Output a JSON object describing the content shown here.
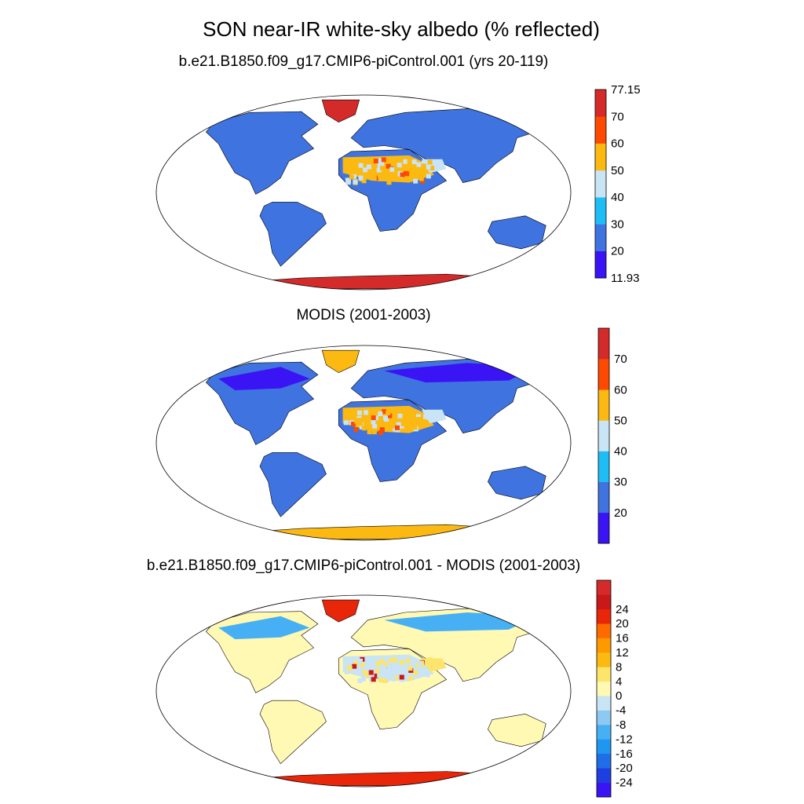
{
  "title": "SON near-IR white-sky albedo (% reflected)",
  "panels": [
    {
      "title": "b.e21.B1850.f09_g17.CMIP6-piControl.001 (yrs 20-119)",
      "colorbar": {
        "colors": [
          "#3a14f5",
          "#3f73e0",
          "#1fbdf5",
          "#c8e4f5",
          "#fbb911",
          "#fd4a00",
          "#d42a2a"
        ],
        "labels": [
          "11.93",
          "20",
          "30",
          "40",
          "50",
          "60",
          "70",
          "77.15"
        ]
      },
      "fields": {
        "land": "#3f73e0",
        "desert": "#fbb911",
        "desert_alt": "#c8e4f5",
        "ice": "#d42a2a",
        "hot": "#fd4a00"
      }
    },
    {
      "title": "MODIS (2001-2003)",
      "colorbar": {
        "colors": [
          "#3a14f5",
          "#3f73e0",
          "#1fbdf5",
          "#c8e4f5",
          "#fbb911",
          "#fd4a00",
          "#d42a2a"
        ],
        "labels": [
          "",
          "20",
          "30",
          "40",
          "50",
          "60",
          "70",
          ""
        ]
      },
      "fields": {
        "land": "#3f73e0",
        "desert": "#fbb911",
        "desert_alt": "#c8e4f5",
        "ice": "#fbb911",
        "hot": "#fd4a00",
        "arctic": "#3a14f5"
      }
    },
    {
      "title": "b.e21.B1850.f09_g17.CMIP6-piControl.001 - MODIS (2001-2003)",
      "colorbar": {
        "colors": [
          "#3a14f5",
          "#1e3fe0",
          "#1f6ee8",
          "#1f96f0",
          "#47b0f5",
          "#8dc9f0",
          "#c8e4f5",
          "#fff9b4",
          "#fde46a",
          "#fbb911",
          "#fd9a00",
          "#fd6a00",
          "#e8260a",
          "#c81818",
          "#d42a2a"
        ],
        "labels": [
          "-24",
          "-20",
          "-16",
          "-12",
          "-8",
          "-4",
          "0",
          "4",
          "8",
          "12",
          "16",
          "20",
          "24"
        ]
      },
      "fields": {
        "land": "#fff9b4",
        "desert": "#c8e4f5",
        "desert_alt": "#fde46a",
        "ice": "#e8260a",
        "hot": "#c81818",
        "arctic": "#47b0f5"
      }
    }
  ]
}
